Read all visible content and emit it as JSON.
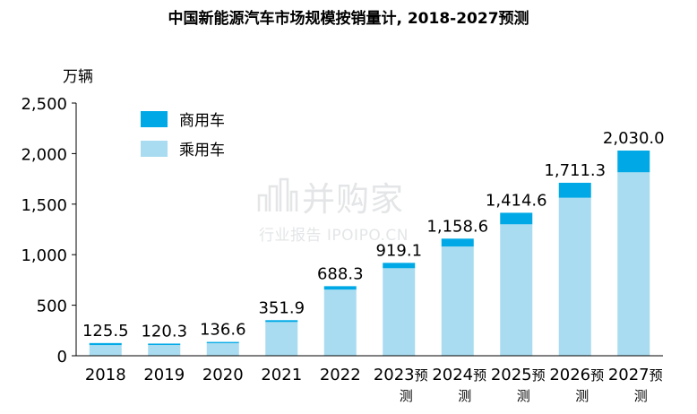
{
  "chart_data": {
    "type": "bar",
    "stacked": true,
    "title": "中国新能源汽车市场规模按销量计, 2018-2027预测",
    "ylabel": "万辆",
    "xlabel": "",
    "ylim": [
      0,
      2500
    ],
    "yticks": [
      0,
      500,
      1000,
      1500,
      2000,
      2500
    ],
    "ytick_labels": [
      "0",
      "500",
      "1,000",
      "1,500",
      "2,000",
      "2,500"
    ],
    "grid": false,
    "legend_position": "top-left",
    "categories": [
      "2018",
      "2019",
      "2020",
      "2021",
      "2022",
      "2023预测",
      "2024预测",
      "2025预测",
      "2026预测",
      "2027预测"
    ],
    "series": [
      {
        "name": "乘用车",
        "color": "#a9dcf0",
        "values": [
          105.5,
          106.3,
          124.6,
          333.9,
          654.3,
          866.1,
          1080.6,
          1300.6,
          1563.3,
          1815.0
        ]
      },
      {
        "name": "商用车",
        "color": "#00a9e6",
        "values": [
          20.0,
          14.0,
          12.0,
          18.0,
          34.0,
          53.0,
          78.0,
          114.0,
          148.0,
          215.0
        ]
      }
    ],
    "totals": [
      125.5,
      120.3,
      136.6,
      351.9,
      688.3,
      919.1,
      1158.6,
      1414.6,
      1711.3,
      2030.0
    ],
    "total_labels": [
      "125.5",
      "120.3",
      "136.6",
      "351.9",
      "688.3",
      "919.1",
      "1,158.6",
      "1,414.6",
      "1,711.3",
      "2,030.0"
    ]
  },
  "watermark": {
    "main": "并购家",
    "sub": "行业报告 IPOIPO.CN"
  }
}
